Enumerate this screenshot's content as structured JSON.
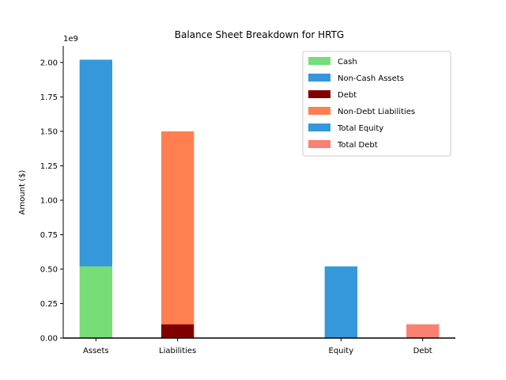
{
  "chart_data": {
    "type": "bar",
    "stacked": true,
    "title": "Balance Sheet Breakdown for HRTG",
    "xlabel": "",
    "ylabel": "Amount ($)",
    "y_multiplier_label": "1e9",
    "ylim": [
      0,
      2.12
    ],
    "yticks": [
      0.0,
      0.25,
      0.5,
      0.75,
      1.0,
      1.25,
      1.5,
      1.75,
      2.0
    ],
    "ytick_labels": [
      "0.00",
      "0.25",
      "0.50",
      "0.75",
      "1.00",
      "1.25",
      "1.50",
      "1.75",
      "2.00"
    ],
    "categories": [
      "Assets",
      "Liabilities",
      "Equity",
      "Debt"
    ],
    "category_positions": [
      0,
      1,
      3,
      4
    ],
    "xlim": [
      -0.4,
      4.4
    ],
    "bar_width": 0.4,
    "grid": false,
    "legend_position": "top-right",
    "series": [
      {
        "name": "Cash",
        "category": "Assets",
        "bottom": 0.0,
        "value": 0.52,
        "color": "#77dd77"
      },
      {
        "name": "Non-Cash Assets",
        "category": "Assets",
        "bottom": 0.52,
        "value": 1.5,
        "color": "#3498db"
      },
      {
        "name": "Debt",
        "category": "Liabilities",
        "bottom": 0.0,
        "value": 0.1,
        "color": "#800000"
      },
      {
        "name": "Non-Debt Liabilities",
        "category": "Liabilities",
        "bottom": 0.1,
        "value": 1.4,
        "color": "#ff7f50"
      },
      {
        "name": "Total Equity",
        "category": "Equity",
        "bottom": 0.0,
        "value": 0.52,
        "color": "#3498db"
      },
      {
        "name": "Total Debt",
        "category": "Debt",
        "bottom": 0.0,
        "value": 0.1,
        "color": "#fa8072"
      }
    ]
  }
}
